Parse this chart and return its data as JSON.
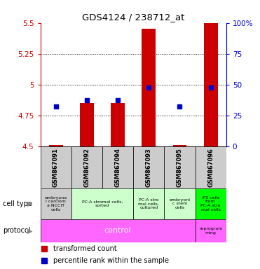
{
  "title": "GDS4124 / 238712_at",
  "samples": [
    "GSM867091",
    "GSM867092",
    "GSM867094",
    "GSM867093",
    "GSM867095",
    "GSM867096"
  ],
  "bar_bottoms": [
    4.5,
    4.5,
    4.5,
    4.5,
    4.5,
    4.5
  ],
  "bar_tops": [
    4.515,
    4.855,
    4.855,
    5.455,
    4.515,
    5.5
  ],
  "blue_dots": [
    4.825,
    4.875,
    4.875,
    4.975,
    4.825,
    4.975
  ],
  "ylim": [
    4.5,
    5.5
  ],
  "yticks_left": [
    4.5,
    4.75,
    5.0,
    5.25,
    5.5
  ],
  "yticks_right": [
    0,
    25,
    50,
    75,
    100
  ],
  "ytick_labels_left": [
    "4.5",
    "4.75",
    "5",
    "5.25",
    "5.5"
  ],
  "ytick_labels_right": [
    "0",
    "25",
    "50",
    "75",
    "100%"
  ],
  "left_axis_color": "#cc0000",
  "right_axis_color": "#0000cc",
  "bar_color": "#cc0000",
  "dot_color": "#0000cc",
  "cell_type_label": "cell type",
  "protocol_label": "protocol",
  "cell_type_0_text": "embryona\nl carciom\na NCCIT\ncells",
  "cell_type_1_text": "PC-A stromal cells,\nsorted",
  "cell_type_2_text": "PC-A stro\nmal cells,\ncultured",
  "cell_type_3_text": "embryoni\nc stem\ncells",
  "cell_type_4_text": "iPS cells\nfrom\nPC-A stro\nmal cells",
  "cell_type_0_color": "#cccccc",
  "cell_type_1_color": "#ccffcc",
  "cell_type_2_color": "#ccffcc",
  "cell_type_3_color": "#ccffcc",
  "cell_type_4_color": "#00ff00",
  "protocol_control_text": "control",
  "protocol_reprogram_text": "reprogram\nming",
  "protocol_color": "#ff66ff",
  "legend_bar_label": "transformed count",
  "legend_dot_label": "percentile rank within the sample",
  "bg_color": "#ffffff"
}
